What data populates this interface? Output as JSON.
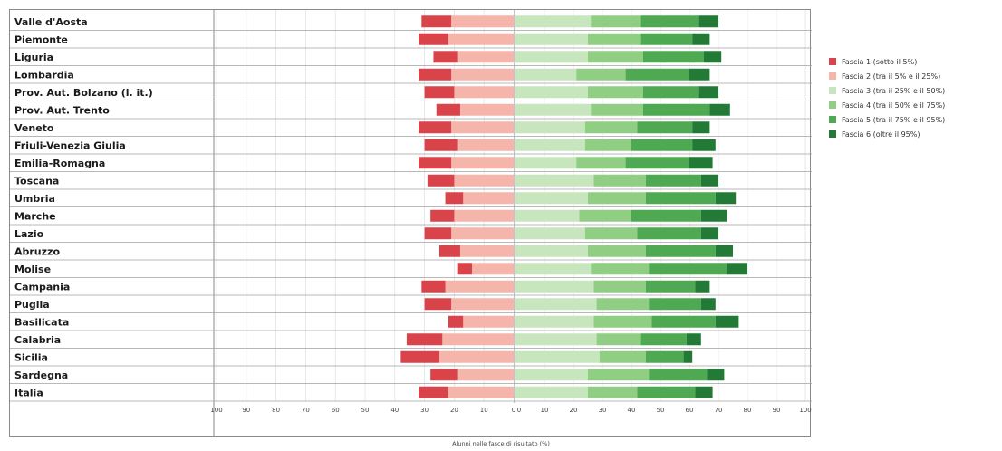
{
  "chart_data": {
    "type": "bar",
    "orientation": "horizontal-diverging",
    "title": "",
    "xlabel": "Alunni nelle fasce di risultato (%)",
    "ylabel": "",
    "xlim_left": [
      100,
      0
    ],
    "xlim_right": [
      0,
      100
    ],
    "xticks_left": [
      "100",
      "90",
      "80",
      "70",
      "60",
      "50",
      "40",
      "30",
      "20",
      "10",
      "0"
    ],
    "xticks_right": [
      "0",
      "10",
      "20",
      "30",
      "40",
      "50",
      "60",
      "70",
      "80",
      "90",
      "100"
    ],
    "grid": true,
    "legend_position": "right",
    "categories": [
      "Valle d'Aosta",
      "Piemonte",
      "Liguria",
      "Lombardia",
      "Prov. Aut. Bolzano (l. it.)",
      "Prov. Aut. Trento",
      "Veneto",
      "Friuli-Venezia Giulia",
      "Emilia-Romagna",
      "Toscana",
      "Umbria",
      "Marche",
      "Lazio",
      "Abruzzo",
      "Molise",
      "Campania",
      "Puglia",
      "Basilicata",
      "Calabria",
      "Sicilia",
      "Sardegna",
      "Italia"
    ],
    "series": [
      {
        "name": "Fascia 1 (sotto il 5%)",
        "side": "left",
        "color": "#d9434a",
        "values": [
          10,
          10,
          8,
          11,
          10,
          8,
          11,
          11,
          11,
          9,
          6,
          8,
          9,
          7,
          5,
          8,
          9,
          5,
          12,
          13,
          9,
          10
        ]
      },
      {
        "name": "Fascia 2 (tra il 5% e il 25%)",
        "side": "left",
        "color": "#f5b5ab",
        "values": [
          21,
          22,
          19,
          21,
          20,
          18,
          21,
          19,
          21,
          20,
          17,
          20,
          21,
          18,
          14,
          23,
          21,
          17,
          24,
          25,
          19,
          22
        ]
      },
      {
        "name": "Fascia 3 (tra il 25% e il 50%)",
        "side": "right",
        "color": "#c8e6bd",
        "values": [
          26,
          25,
          25,
          21,
          25,
          26,
          24,
          24,
          21,
          27,
          25,
          22,
          24,
          25,
          26,
          27,
          28,
          27,
          28,
          29,
          25,
          25
        ]
      },
      {
        "name": "Fascia 4 (tra il 50% e il 75%)",
        "side": "right",
        "color": "#8fce83",
        "values": [
          17,
          18,
          19,
          17,
          19,
          18,
          18,
          16,
          17,
          18,
          20,
          18,
          18,
          20,
          20,
          18,
          18,
          20,
          15,
          16,
          21,
          17
        ]
      },
      {
        "name": "Fascia 5 (tra il 75% e il 95%)",
        "side": "right",
        "color": "#4fa852",
        "values": [
          20,
          18,
          21,
          22,
          19,
          23,
          19,
          21,
          22,
          19,
          24,
          24,
          22,
          24,
          27,
          17,
          18,
          22,
          16,
          13,
          20,
          20
        ]
      },
      {
        "name": "Fascia 6 (oltre il 95%)",
        "side": "right",
        "color": "#237a37",
        "values": [
          7,
          6,
          6,
          7,
          7,
          7,
          6,
          8,
          8,
          6,
          7,
          9,
          6,
          6,
          7,
          5,
          5,
          8,
          5,
          3,
          6,
          6
        ]
      }
    ]
  }
}
